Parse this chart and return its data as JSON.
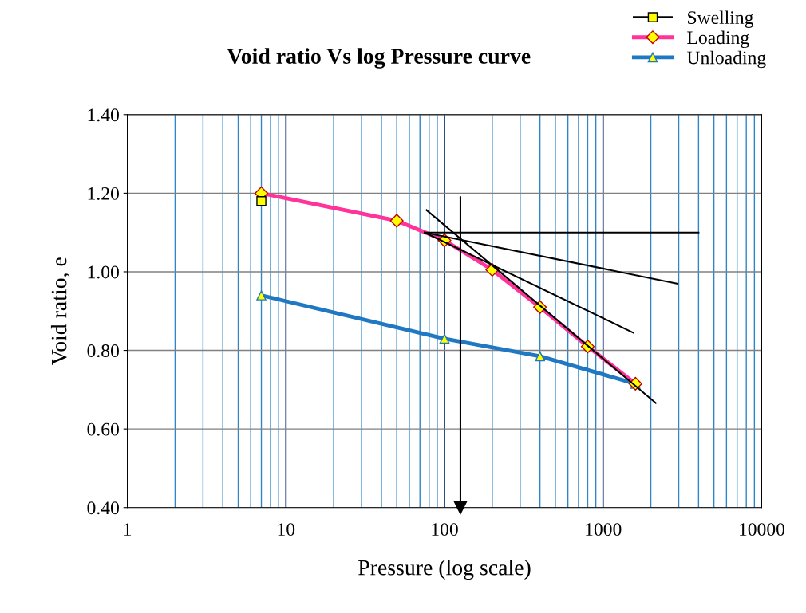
{
  "chart_data": {
    "type": "line",
    "title": "Void ratio Vs log Pressure curve",
    "xlabel": "Pressure (log scale)",
    "ylabel": "Void ratio, e",
    "log": "x",
    "xlim": [
      1,
      10000
    ],
    "xticks": [
      1,
      10,
      100,
      1000,
      10000
    ],
    "ref_lines": [
      {
        "axis": "x",
        "value": 2,
        "color": "#2e86c8"
      },
      {
        "axis": "x",
        "value": 3,
        "color": "#2e86c8"
      },
      {
        "axis": "x",
        "value": 4,
        "color": "#2e86c8"
      },
      {
        "axis": "x",
        "value": 5,
        "color": "#2e86c8"
      },
      {
        "axis": "x",
        "value": 6,
        "color": "#2e86c8"
      },
      {
        "axis": "x",
        "value": 7,
        "color": "#2e86c8"
      },
      {
        "axis": "x",
        "value": 8,
        "color": "#2e86c8"
      },
      {
        "axis": "x",
        "value": 9,
        "color": "#2e86c8"
      },
      {
        "axis": "x",
        "value": 20,
        "color": "#2e86c8"
      },
      {
        "axis": "x",
        "value": 30,
        "color": "#2e86c8"
      },
      {
        "axis": "x",
        "value": 40,
        "color": "#2e86c8"
      },
      {
        "axis": "x",
        "value": 50,
        "color": "#2e86c8"
      },
      {
        "axis": "x",
        "value": 60,
        "color": "#2e86c8"
      },
      {
        "axis": "x",
        "value": 70,
        "color": "#2e86c8"
      },
      {
        "axis": "x",
        "value": 80,
        "color": "#2e86c8"
      },
      {
        "axis": "x",
        "value": 90,
        "color": "#2e86c8"
      },
      {
        "axis": "x",
        "value": 200,
        "color": "#2e86c8"
      },
      {
        "axis": "x",
        "value": 300,
        "color": "#2e86c8"
      },
      {
        "axis": "x",
        "value": 400,
        "color": "#2e86c8"
      },
      {
        "axis": "x",
        "value": 500,
        "color": "#2e86c8"
      },
      {
        "axis": "x",
        "value": 600,
        "color": "#2e86c8"
      },
      {
        "axis": "x",
        "value": 700,
        "color": "#2e86c8"
      },
      {
        "axis": "x",
        "value": 800,
        "color": "#2e86c8"
      },
      {
        "axis": "x",
        "value": 900,
        "color": "#2e86c8"
      },
      {
        "axis": "x",
        "value": 2000,
        "color": "#2e86c8"
      },
      {
        "axis": "x",
        "value": 3000,
        "color": "#2e86c8"
      },
      {
        "axis": "x",
        "value": 4000,
        "color": "#2e86c8"
      },
      {
        "axis": "x",
        "value": 5000,
        "color": "#2e86c8"
      },
      {
        "axis": "x",
        "value": 6000,
        "color": "#2e86c8"
      },
      {
        "axis": "x",
        "value": 7000,
        "color": "#2e86c8"
      },
      {
        "axis": "x",
        "value": 8000,
        "color": "#2e86c8"
      },
      {
        "axis": "x",
        "value": 9000,
        "color": "#2e86c8"
      }
    ],
    "ylim": [
      0.4,
      1.4
    ],
    "yticks": [
      {
        "value": 0.4,
        "label": "0.40"
      },
      {
        "value": 0.6,
        "label": "0.60"
      },
      {
        "value": 0.8,
        "label": "0.80"
      },
      {
        "value": 1.0,
        "label": "1.00"
      },
      {
        "value": 1.2,
        "label": "1.20"
      },
      {
        "value": 1.4,
        "label": "1.40"
      }
    ],
    "grid": true,
    "legend": "top right",
    "series": [
      {
        "name": "Swelling",
        "color": "#000000",
        "marker": "square",
        "x": [
          7
        ],
        "values": [
          1.18
        ]
      },
      {
        "name": "Loading",
        "color": "#ff3399",
        "marker": "diamond",
        "x": [
          7,
          50,
          100,
          200,
          400,
          800,
          1600
        ],
        "values": [
          1.2,
          1.13,
          1.08,
          1.005,
          0.91,
          0.81,
          0.715
        ]
      },
      {
        "name": "Unloading",
        "color": "#1f78c1",
        "marker": "triangle",
        "x": [
          7,
          100,
          400,
          1600
        ],
        "values": [
          0.94,
          0.83,
          0.785,
          0.715
        ]
      },
      {
        "color": "#000000",
        "marker": "none",
        "x": [
          75,
          4000
        ],
        "values": [
          1.1,
          1.1
        ]
      },
      {
        "color": "#000000",
        "marker": "none",
        "x": [
          75,
          2930
        ],
        "values": [
          1.1,
          0.97
        ]
      },
      {
        "color": "#000000",
        "marker": "none",
        "x": [
          75,
          1550
        ],
        "values": [
          1.1,
          0.845
        ]
      },
      {
        "color": "#000000",
        "marker": "none",
        "x": [
          77,
          2150
        ],
        "values": [
          1.157,
          0.666
        ]
      },
      {
        "color": "#000000",
        "marker": "triangle",
        "x": [
          126,
          126
        ],
        "values": [
          1.19,
          0.4
        ]
      }
    ]
  }
}
